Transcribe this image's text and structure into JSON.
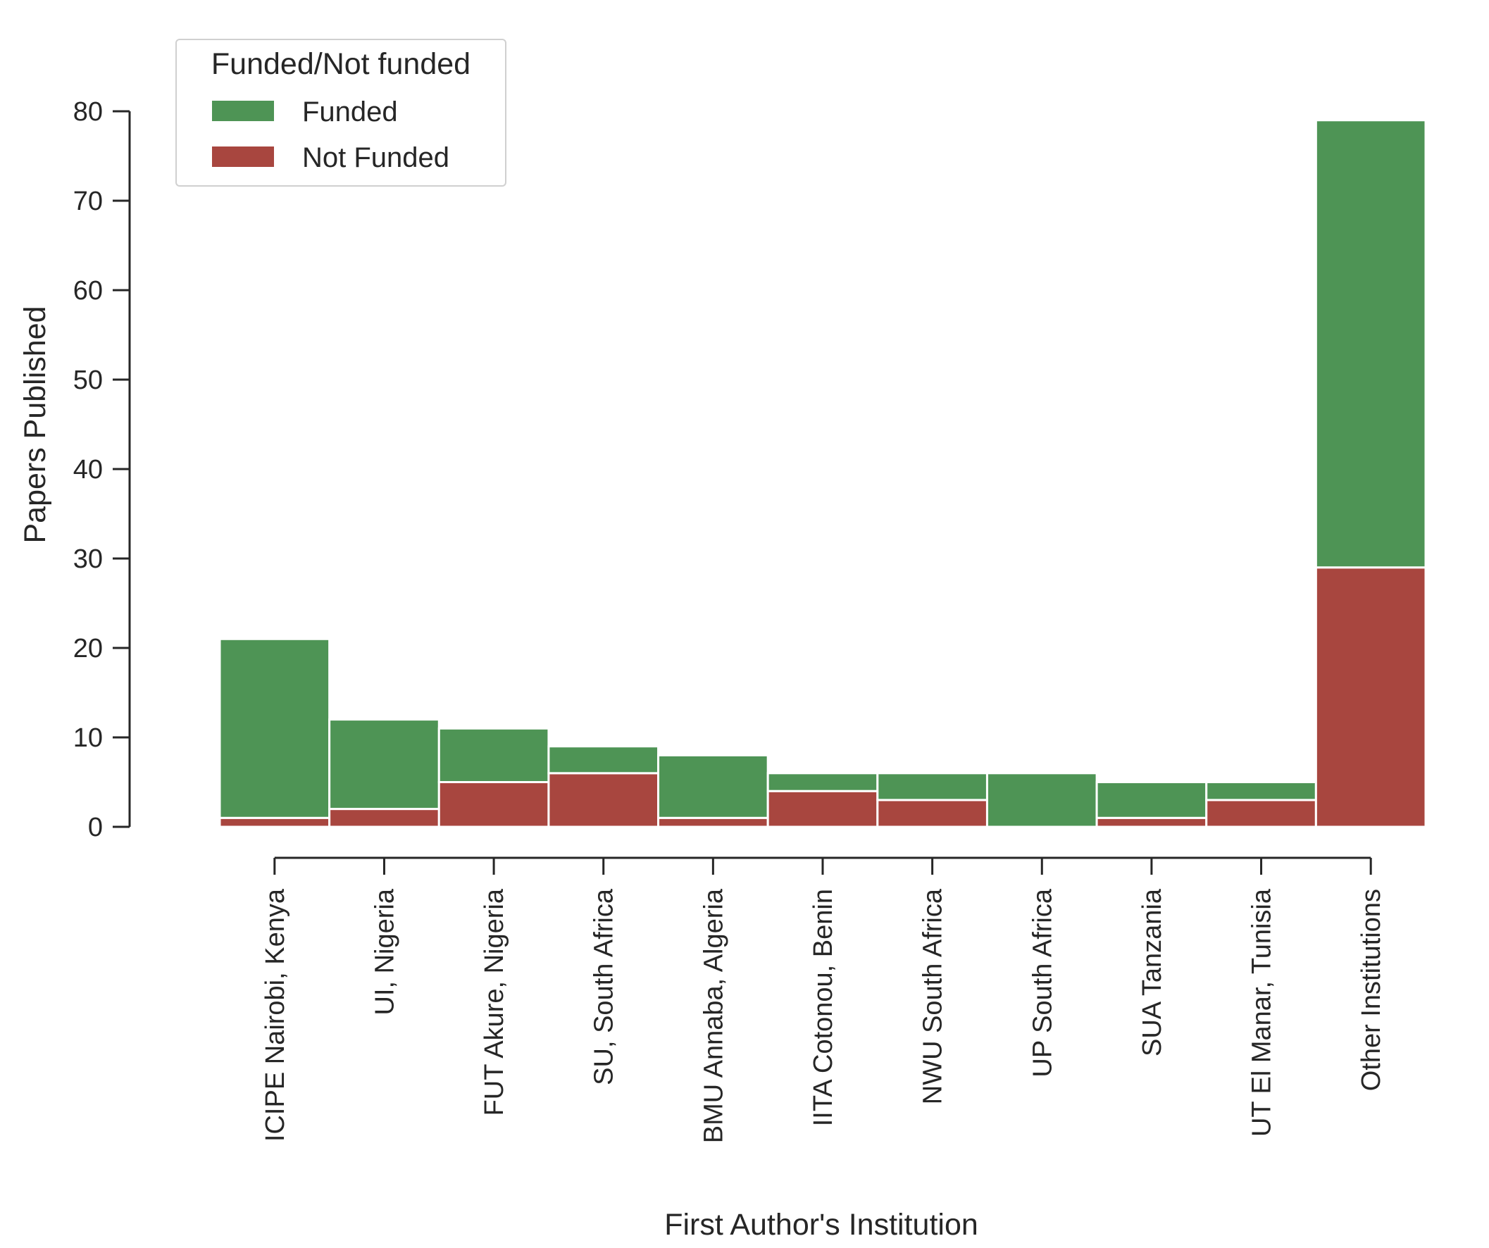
{
  "chart_data": {
    "type": "bar",
    "stacked": true,
    "title": "",
    "xlabel": "First Author's Institution",
    "ylabel": "Papers Published",
    "ylim": [
      0,
      80
    ],
    "yticks": [
      0,
      10,
      20,
      30,
      40,
      50,
      60,
      70,
      80
    ],
    "grid": false,
    "categories": [
      "ICIPE Nairobi, Kenya",
      "UI, Nigeria",
      "FUT Akure, Nigeria",
      "SU, South Africa",
      "BMU Annaba, Algeria",
      "IITA Cotonou, Benin",
      "NWU South Africa",
      "UP South Africa",
      "SUA Tanzania",
      "UT El Manar, Tunisia",
      "Other Institutions"
    ],
    "series": [
      {
        "name": "Not Funded",
        "color": "#a8463f",
        "values": [
          1,
          2,
          5,
          6,
          1,
          4,
          3,
          0,
          1,
          3,
          29
        ]
      },
      {
        "name": "Funded",
        "color": "#4e9455",
        "values": [
          20,
          10,
          6,
          3,
          7,
          2,
          3,
          6,
          4,
          2,
          50
        ]
      }
    ],
    "legend": {
      "title": "Funded/Not funded",
      "placement": "top-left",
      "entries": [
        {
          "label": "Funded",
          "color": "#4e9455"
        },
        {
          "label": "Not Funded",
          "color": "#a8463f"
        }
      ]
    }
  }
}
